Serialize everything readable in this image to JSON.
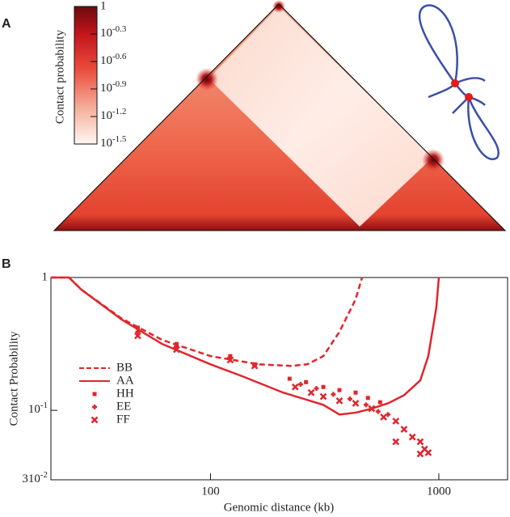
{
  "panel_labels": [
    "A",
    "B"
  ],
  "colorbar": {
    "label": "Contact probability",
    "scale": "log",
    "lim": [
      0.0316,
      1
    ],
    "ticks": [
      1,
      {
        "value": 0.501,
        "label": "10^-0.3"
      },
      {
        "value": 0.251,
        "label": "10^-0.6"
      },
      {
        "value": 0.126,
        "label": "10^-0.9"
      },
      {
        "value": 0.063,
        "label": "10^-1.2"
      },
      {
        "value": 0.0316,
        "label": "10^-1.5"
      }
    ]
  },
  "chart_data": {
    "type": "line",
    "xlabel": "Genomic distance (kb)",
    "ylabel": "Contact Probability",
    "xscale": "log",
    "yscale": "log",
    "xlim": [
      20,
      2000
    ],
    "ylim": [
      0.03,
      1
    ],
    "xticks": [
      100,
      1000
    ],
    "yticks": [
      1,
      {
        "value": 0.1,
        "label": "10^-1"
      },
      {
        "value": 0.03,
        "label": "310^-2"
      }
    ],
    "legend": "left",
    "series": [
      {
        "name": "BB",
        "color": "#e0262c",
        "style": "dashed",
        "x": [
          20,
          24,
          27.2,
          40.9,
          61.4,
          100,
          163,
          226,
          265,
          312,
          367,
          432,
          461
        ],
        "values": [
          1,
          1,
          0.81,
          0.49,
          0.339,
          0.256,
          0.222,
          0.216,
          0.222,
          0.256,
          0.39,
          0.685,
          1
        ]
      },
      {
        "name": "AA",
        "color": "#e0262c",
        "style": "solid",
        "x": [
          20,
          24,
          27.2,
          40.9,
          61.4,
          100,
          138.4,
          208,
          312,
          367,
          432,
          508,
          599,
          704,
          829,
          899,
          975,
          1000
        ],
        "values": [
          1,
          1,
          0.81,
          0.482,
          0.316,
          0.222,
          0.18,
          0.136,
          0.11,
          0.093,
          0.096,
          0.103,
          0.113,
          0.13,
          0.168,
          0.256,
          0.595,
          1
        ]
      },
      {
        "name": "HH",
        "color": "#e0262c",
        "style": "square",
        "x": [
          48,
          71,
          122,
          156,
          222,
          262,
          312,
          367,
          432,
          489,
          553
        ],
        "values": [
          0.419,
          0.316,
          0.256,
          0.222,
          0.173,
          0.163,
          0.15,
          0.142,
          0.136,
          0.124,
          0.115
        ]
      },
      {
        "name": "EE",
        "color": "#e0262c",
        "style": "plus",
        "x": [
          48,
          71,
          122,
          156,
          248,
          291,
          345,
          408,
          480,
          542,
          599
        ],
        "values": [
          0.39,
          0.303,
          0.249,
          0.219,
          0.157,
          0.146,
          0.132,
          0.122,
          0.11,
          0.098,
          0.093
        ]
      },
      {
        "name": "FF",
        "color": "#e0262c",
        "style": "cross",
        "x": [
          48,
          71,
          122,
          156,
          235,
          276,
          312,
          367,
          432,
          508,
          573,
          648,
          704,
          766,
          648,
          829,
          866,
          899,
          829
        ],
        "values": [
          0.364,
          0.287,
          0.239,
          0.216,
          0.15,
          0.136,
          0.127,
          0.118,
          0.113,
          0.103,
          0.089,
          0.083,
          0.072,
          0.063,
          0.058,
          0.058,
          0.051,
          0.048,
          0.047
        ]
      }
    ]
  }
}
